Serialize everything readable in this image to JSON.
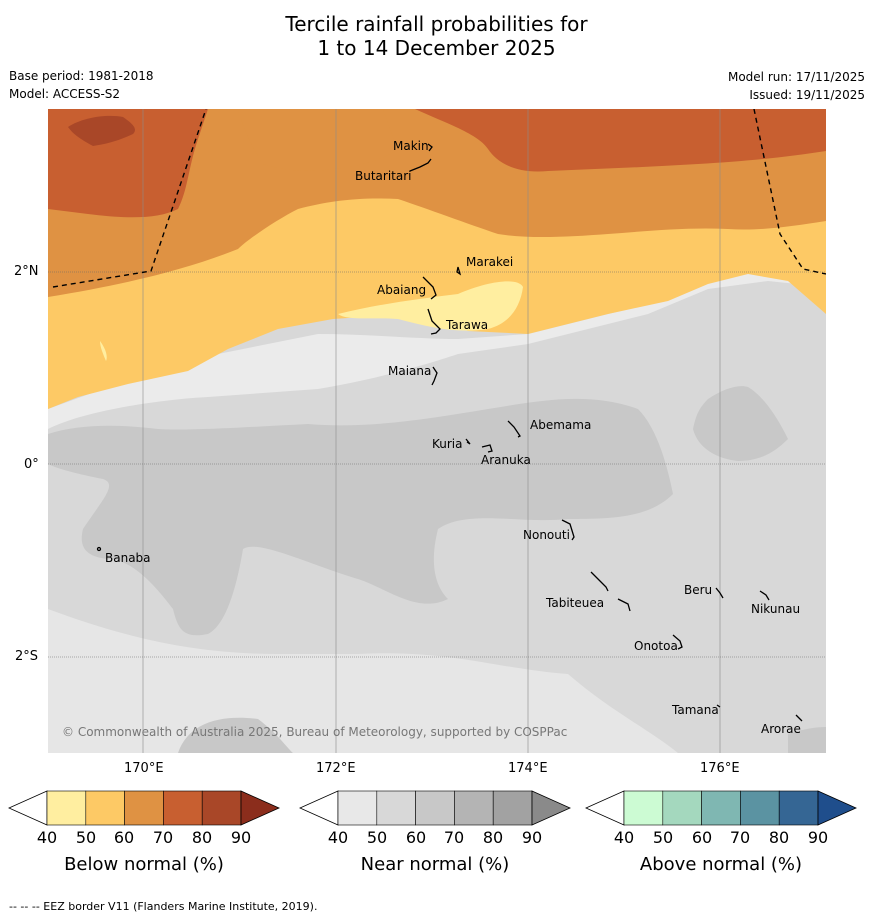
{
  "title_line1": "Tercile rainfall probabilities for",
  "title_line2": "1 to 14 December 2025",
  "base_period": "Base period: 1981-2018",
  "model": "Model: ACCESS-S2",
  "model_run": "Model run: 17/11/2025",
  "issued": "Issued: 19/11/2025",
  "copyright": "© Commonwealth of Australia 2025, Bureau of Meteorology, supported by COSPPac",
  "footer": "--  --  -- EEZ border V11 (Flanders Marine Institute, 2019).",
  "lat_labels": [
    "2°N",
    "0°",
    "2°S"
  ],
  "lon_labels": [
    "170°E",
    "172°E",
    "174°E",
    "176°E"
  ],
  "places": [
    "Makin",
    "Butaritari",
    "Marakei",
    "Abaiang",
    "Tarawa",
    "Maiana",
    "Abemama",
    "Kuria",
    "Aranuka",
    "Banaba",
    "Nonouti",
    "Beru",
    "Nikunau",
    "Tabiteuea",
    "Onotoa",
    "Tamana",
    "Arorae"
  ],
  "colorbars": [
    {
      "label": "Below normal (%)",
      "ticks": [
        "40",
        "50",
        "60",
        "70",
        "80",
        "90"
      ],
      "colors": [
        "#ffeea0",
        "#fdc965",
        "#df9243",
        "#c85f30",
        "#a94728",
        "#8b2d1c"
      ]
    },
    {
      "label": "Near normal (%)",
      "ticks": [
        "40",
        "50",
        "60",
        "70",
        "80",
        "90"
      ],
      "colors": [
        "#e8e8e8",
        "#d8d8d8",
        "#c8c8c8",
        "#b4b4b4",
        "#a2a2a2",
        "#8a8a8a"
      ]
    },
    {
      "label": "Above normal (%)",
      "ticks": [
        "40",
        "50",
        "60",
        "70",
        "80",
        "90"
      ],
      "colors": [
        "#ccfbd3",
        "#a4d8be",
        "#7fb7b2",
        "#5b93a2",
        "#356694",
        "#1f4e8c"
      ]
    }
  ]
}
